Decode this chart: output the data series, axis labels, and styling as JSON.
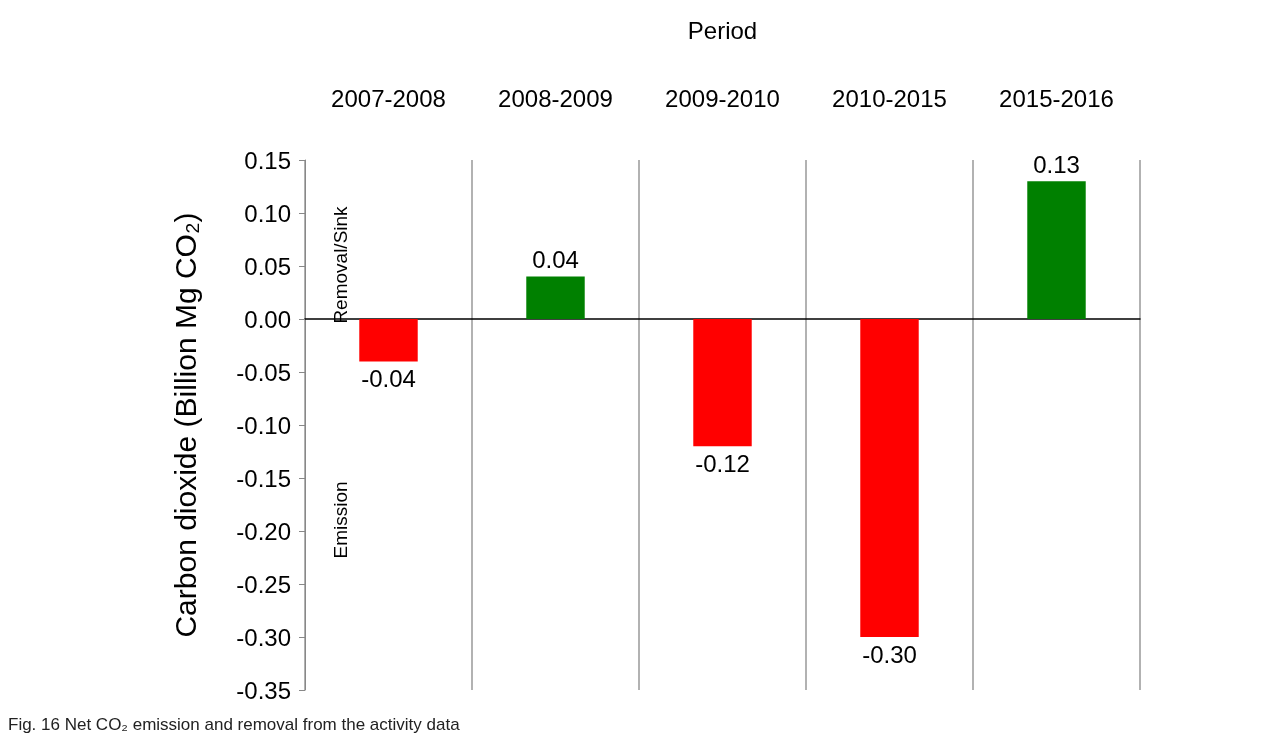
{
  "chart_data": {
    "type": "bar",
    "xlabel": "Period",
    "ylabel": "Carbon dioxide (Billion Mg CO₂)",
    "categories": [
      "2007-2008",
      "2008-2009",
      "2009-2010",
      "2010-2015",
      "2015-2016"
    ],
    "values": [
      -0.04,
      0.04,
      -0.12,
      -0.3,
      0.13
    ],
    "colors": [
      "#ff0000",
      "#008000",
      "#ff0000",
      "#ff0000",
      "#008000"
    ],
    "value_labels": [
      "-0.04",
      "0.04",
      "-0.12",
      "-0.30",
      "0.13"
    ],
    "ylim": [
      -0.35,
      0.15
    ],
    "yticks": [
      {
        "value": -0.35,
        "label": "-0.35"
      },
      {
        "value": -0.3,
        "label": "-0.30"
      },
      {
        "value": -0.25,
        "label": "-0.25"
      },
      {
        "value": -0.2,
        "label": "-0.20"
      },
      {
        "value": -0.15,
        "label": "-0.15"
      },
      {
        "value": -0.1,
        "label": "-0.10"
      },
      {
        "value": -0.05,
        "label": "-0.05"
      },
      {
        "value": 0,
        "label": "0.00"
      },
      {
        "value": 0.05,
        "label": "0.05"
      },
      {
        "value": 0.1,
        "label": "0.10"
      },
      {
        "value": 0.15,
        "label": "0.15"
      }
    ],
    "grid": "x",
    "annotations": [
      "Removal/Sink",
      "Emission",
      "Fig. 16 Net CO₂ emission and removal from the activity data"
    ]
  }
}
